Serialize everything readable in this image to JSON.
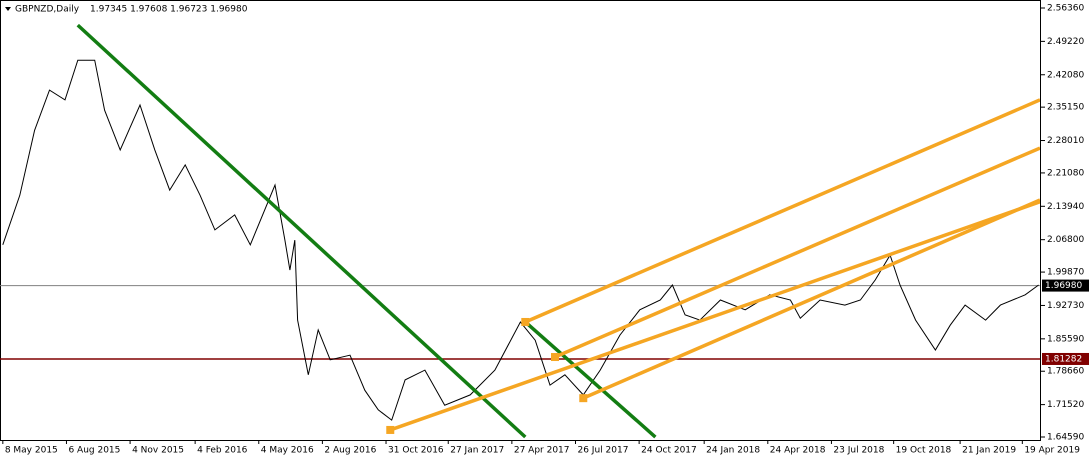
{
  "chart_data": {
    "type": "line",
    "title": "GBPNZD,Daily",
    "quote": "1.97345 1.97608 1.96723 1.96980",
    "xlim": [
      "2015-05-04",
      "2019-05-14"
    ],
    "ylim": [
      1.6395,
      2.5807
    ],
    "xticks": [
      {
        "value": "2015-05-08",
        "label": "8 May 2015"
      },
      {
        "value": "2015-08-06",
        "label": "6 Aug 2015"
      },
      {
        "value": "2015-11-04",
        "label": "4 Nov 2015"
      },
      {
        "value": "2016-02-04",
        "label": "4 Feb 2016"
      },
      {
        "value": "2016-05-04",
        "label": "4 May 2016"
      },
      {
        "value": "2016-08-02",
        "label": "2 Aug 2016"
      },
      {
        "value": "2016-10-31",
        "label": "31 Oct 2016"
      },
      {
        "value": "2017-01-27",
        "label": "27 Jan 2017"
      },
      {
        "value": "2017-04-27",
        "label": "27 Apr 2017"
      },
      {
        "value": "2017-07-26",
        "label": "26 Jul 2017"
      },
      {
        "value": "2017-10-24",
        "label": "24 Oct 2017"
      },
      {
        "value": "2018-01-24",
        "label": "24 Jan 2018"
      },
      {
        "value": "2018-04-24",
        "label": "24 Apr 2018"
      },
      {
        "value": "2018-07-23",
        "label": "23 Jul 2018"
      },
      {
        "value": "2018-10-19",
        "label": "19 Oct 2018"
      },
      {
        "value": "2019-01-21",
        "label": "21 Jan 2019"
      },
      {
        "value": "2019-04-19",
        "label": "19 Apr 2019"
      }
    ],
    "yticks": [
      {
        "value": 2.5636,
        "label": "2.56360"
      },
      {
        "value": 2.4922,
        "label": "2.49220"
      },
      {
        "value": 2.4208,
        "label": "2.42080"
      },
      {
        "value": 2.3515,
        "label": "2.35150"
      },
      {
        "value": 2.2801,
        "label": "2.28010"
      },
      {
        "value": 2.2108,
        "label": "2.21080"
      },
      {
        "value": 2.1394,
        "label": "2.13940"
      },
      {
        "value": 2.068,
        "label": "2.06800"
      },
      {
        "value": 1.9987,
        "label": "1.99870"
      },
      {
        "value": 1.9273,
        "label": "1.92730"
      },
      {
        "value": 1.8559,
        "label": "1.85590"
      },
      {
        "value": 1.7866,
        "label": "1.78660"
      },
      {
        "value": 1.7152,
        "label": "1.71520"
      },
      {
        "value": 1.6459,
        "label": "1.64590"
      }
    ],
    "series": [
      {
        "color": "#000000",
        "x": [
          "2015-05-08",
          "2015-06-01",
          "2015-06-22",
          "2015-07-13",
          "2015-08-04",
          "2015-08-22",
          "2015-09-15",
          "2015-09-29",
          "2015-10-21",
          "2015-11-18",
          "2015-12-09",
          "2015-12-30",
          "2016-01-21",
          "2016-02-11",
          "2016-03-03",
          "2016-03-31",
          "2016-04-22",
          "2016-05-27",
          "2016-06-10",
          "2016-06-17",
          "2016-06-24",
          "2016-06-28",
          "2016-07-13",
          "2016-07-27",
          "2016-08-13",
          "2016-09-10",
          "2016-10-01",
          "2016-10-20",
          "2016-11-08",
          "2016-11-27",
          "2016-12-25",
          "2017-01-22",
          "2017-02-27",
          "2017-04-03",
          "2017-05-09",
          "2017-05-30",
          "2017-06-20",
          "2017-07-11",
          "2017-08-06",
          "2017-08-30",
          "2017-09-27",
          "2017-10-25",
          "2017-11-23",
          "2017-12-10",
          "2017-12-28",
          "2018-01-18",
          "2018-02-16",
          "2018-03-23",
          "2018-04-27",
          "2018-05-26",
          "2018-06-09",
          "2018-07-07",
          "2018-08-11",
          "2018-09-02",
          "2018-09-23",
          "2018-10-14",
          "2018-10-28",
          "2018-11-19",
          "2018-12-17",
          "2019-01-07",
          "2019-01-28",
          "2019-02-26",
          "2019-03-19",
          "2019-04-23",
          "2019-05-12"
        ],
        "values": [
          2.057,
          2.163,
          2.302,
          2.388,
          2.367,
          2.452,
          2.452,
          2.345,
          2.26,
          2.356,
          2.26,
          2.174,
          2.228,
          2.163,
          2.089,
          2.121,
          2.057,
          2.185,
          2.067,
          2.003,
          2.067,
          1.896,
          1.779,
          1.875,
          1.811,
          1.821,
          1.746,
          1.704,
          1.682,
          1.768,
          1.789,
          1.714,
          1.736,
          1.789,
          1.892,
          1.853,
          1.757,
          1.779,
          1.736,
          1.789,
          1.864,
          1.918,
          1.939,
          1.971,
          1.907,
          1.896,
          1.939,
          1.918,
          1.95,
          1.939,
          1.9,
          1.939,
          1.928,
          1.939,
          1.982,
          2.035,
          1.971,
          1.896,
          1.832,
          1.885,
          1.928,
          1.896,
          1.928,
          1.95,
          1.971
        ]
      }
    ],
    "trendlines": [
      {
        "color": "#137d13",
        "x": [
          "2015-08-22",
          "2017-05-16"
        ],
        "values": [
          2.527,
          1.6459
        ]
      },
      {
        "color": "#137d13",
        "x": [
          "2017-05-16",
          "2017-11-16"
        ],
        "values": [
          1.892,
          1.6459
        ]
      },
      {
        "color": "#f5a623",
        "x": [
          "2016-11-06",
          "2019-05-14"
        ],
        "values": [
          1.661,
          2.149
        ]
      },
      {
        "color": "#f5a623",
        "x": [
          "2017-05-16",
          "2019-05-14"
        ],
        "values": [
          1.892,
          2.367
        ]
      },
      {
        "color": "#f5a623",
        "x": [
          "2017-06-27",
          "2019-05-14"
        ],
        "values": [
          1.817,
          2.264
        ]
      },
      {
        "color": "#f5a623",
        "x": [
          "2017-08-06",
          "2019-05-14"
        ],
        "values": [
          1.729,
          2.153
        ]
      }
    ],
    "hlines": [
      {
        "value": 1.9698,
        "label": "1.96980",
        "color": "#808080"
      },
      {
        "value": 1.81282,
        "label": "1.81282",
        "color": "#800000"
      }
    ]
  }
}
